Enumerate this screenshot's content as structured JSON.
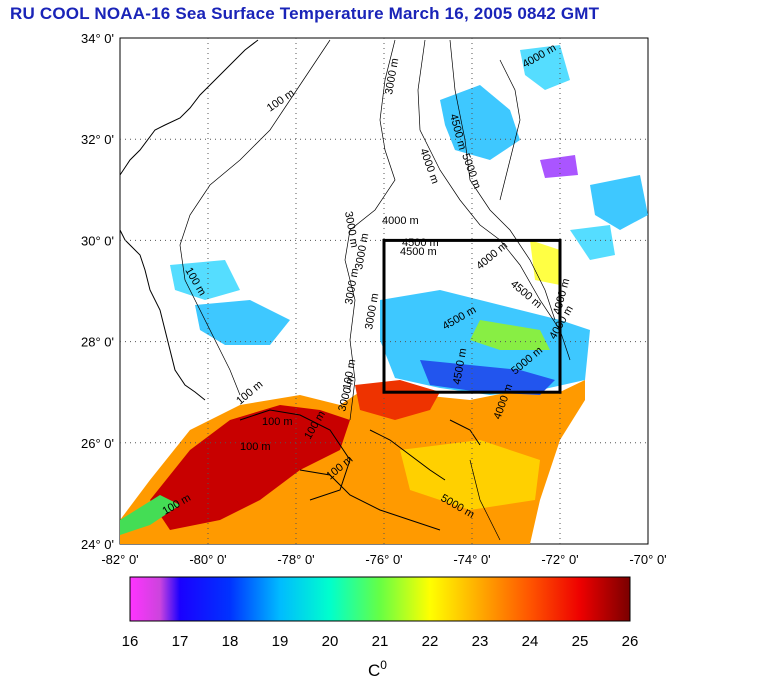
{
  "title": "RU COOL  NOAA-16 Sea Surface Temperature March 16, 2005 0842 GMT",
  "colors": {
    "title": "#1a24b8",
    "grid": "#555555",
    "box": "#000000"
  },
  "map": {
    "lon_ticks": [
      "-82° 0'",
      "-80° 0'",
      "-78° 0'",
      "-76° 0'",
      "-74° 0'",
      "-72° 0'",
      "-70° 0'"
    ],
    "lat_ticks": [
      "34° 0'",
      "32° 0'",
      "30° 0'",
      "28° 0'",
      "26° 0'",
      "24° 0'"
    ],
    "lon_range": [
      -82,
      -70
    ],
    "lat_range": [
      24,
      34
    ],
    "study_box": {
      "lon": [
        -76,
        -72
      ],
      "lat": [
        27,
        30
      ]
    },
    "contour_labels": [
      "100 m",
      "3000 m",
      "4000 m",
      "4500 m",
      "5000 m",
      "4000 m",
      "3000 m",
      "4000 m",
      "4500 m",
      "3000 m",
      "4500 m",
      "4000 m",
      "100 m",
      "100 m",
      "4500 m",
      "4000 m",
      "100 m",
      "4500 m",
      "5000 m",
      "4000 m",
      "3000 m",
      "100 m",
      "100 m",
      "5000 m",
      "100 m",
      "100 m",
      "4000 m",
      "4500 m",
      "3000 m",
      "3000 m",
      "100 m"
    ]
  },
  "colorbar": {
    "ticks": [
      "16",
      "17",
      "18",
      "19",
      "20",
      "21",
      "22",
      "23",
      "24",
      "25",
      "26"
    ],
    "unit_label": "C",
    "unit_sup": "0",
    "range": [
      16,
      26
    ]
  }
}
